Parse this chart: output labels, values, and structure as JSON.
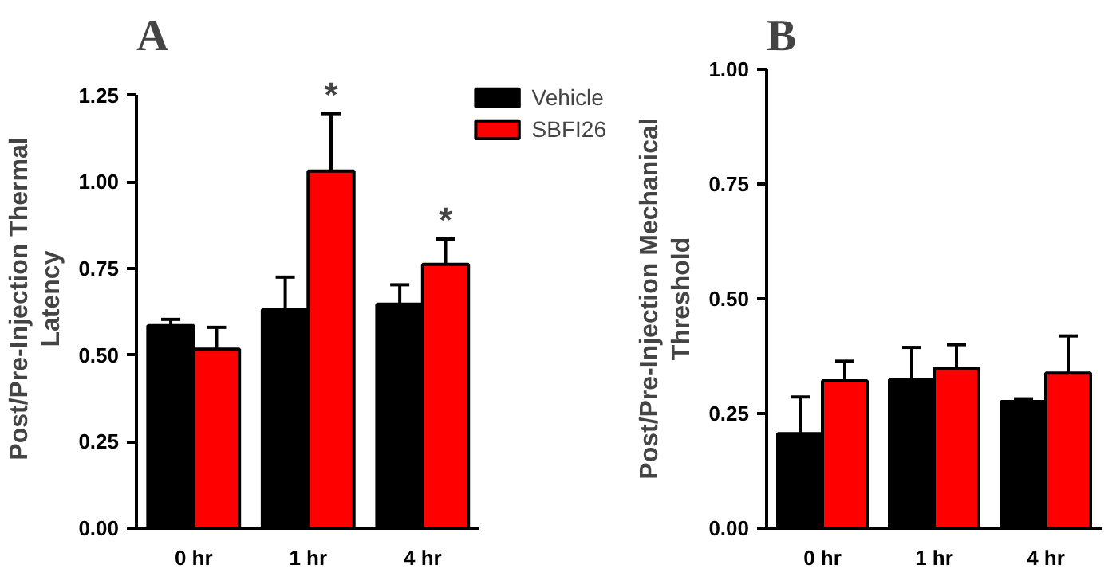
{
  "chart_data": [
    {
      "type": "bar",
      "title": "A",
      "ylabel": "Post/Pre-Injection Thermal Latency",
      "categories": [
        "0 hr",
        "1 hr",
        "4 hr"
      ],
      "series": [
        {
          "name": "Vehicle",
          "color": "#000000",
          "values": [
            0.585,
            0.631,
            0.647
          ],
          "errors": [
            [
              0.585,
              0.603
            ],
            [
              0.631,
              0.725
            ],
            [
              0.647,
              0.703
            ]
          ]
        },
        {
          "name": "SBFI26",
          "color": "#ff0000",
          "values": [
            0.517,
            1.031,
            0.762
          ],
          "errors": [
            [
              0.517,
              0.58
            ],
            [
              1.031,
              1.197
            ],
            [
              0.762,
              0.835
            ]
          ]
        }
      ],
      "annotations": [
        "*",
        "*"
      ],
      "ylim": [
        0,
        1.25
      ],
      "yticks": [
        {
          "value": 0,
          "label": "0.00"
        },
        {
          "value": 0.25,
          "label": "0.25"
        },
        {
          "value": 0.5,
          "label": "0.50"
        },
        {
          "value": 0.75,
          "label": "0.75"
        },
        {
          "value": 1,
          "label": "1.00"
        },
        {
          "value": 1.25,
          "label": "1.25"
        }
      ],
      "grid": false,
      "legend": "top right"
    },
    {
      "type": "bar",
      "title": "B",
      "ylabel": "Post/Pre-Injection Mechanical Threshold",
      "categories": [
        "0 hr",
        "1 hr",
        "4 hr"
      ],
      "series": [
        {
          "color": "#000000",
          "values": [
            0.206,
            0.324,
            0.276
          ],
          "errors": [
            [
              0.206,
              0.286
            ],
            [
              0.324,
              0.394
            ],
            [
              0.276,
              0.282
            ]
          ]
        },
        {
          "color": "#ff0000",
          "values": [
            0.321,
            0.348,
            0.338
          ],
          "errors": [
            [
              0.321,
              0.364
            ],
            [
              0.348,
              0.4
            ],
            [
              0.338,
              0.419
            ]
          ]
        }
      ],
      "ylim": [
        0,
        1
      ],
      "yticks": [
        {
          "value": 0,
          "label": "0.00"
        },
        {
          "value": 0.25,
          "label": "0.25"
        },
        {
          "value": 0.5,
          "label": "0.50"
        },
        {
          "value": 0.75,
          "label": "0.75"
        },
        {
          "value": 1,
          "label": "1.00"
        }
      ],
      "grid": false
    }
  ]
}
